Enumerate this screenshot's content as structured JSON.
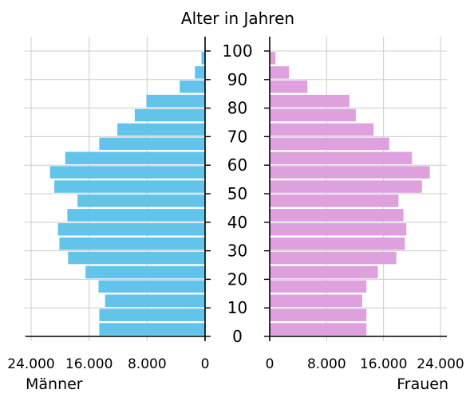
{
  "chart_data": {
    "type": "bar",
    "orientation": "horizontal",
    "title": "Alter in Jahren",
    "age_groups": [
      "0-4",
      "5-9",
      "10-14",
      "15-19",
      "20-24",
      "25-29",
      "30-34",
      "35-39",
      "40-44",
      "45-49",
      "50-54",
      "55-59",
      "60-64",
      "65-69",
      "70-74",
      "75-79",
      "80-84",
      "85-89",
      "90-94",
      "95-99"
    ],
    "age_axis_ticks": [
      "0",
      "10",
      "20",
      "30",
      "40",
      "50",
      "60",
      "70",
      "80",
      "90",
      "100"
    ],
    "series": [
      {
        "name": "Männer",
        "color": "#62c4ea",
        "values": [
          14600,
          14600,
          13800,
          14700,
          16500,
          18900,
          20100,
          20300,
          19000,
          17600,
          20800,
          21400,
          19300,
          14600,
          12100,
          9700,
          8100,
          3500,
          1400,
          500
        ]
      },
      {
        "name": "Frauen",
        "color": "#dea1de",
        "values": [
          13600,
          13600,
          13000,
          13600,
          15200,
          17800,
          19000,
          19200,
          18800,
          18100,
          21400,
          22500,
          20000,
          16800,
          14600,
          12100,
          11200,
          5300,
          2700,
          800
        ]
      }
    ],
    "xlim": [
      0,
      24000
    ],
    "x_ticks_left": [
      "24.000",
      "16.000",
      "8.000",
      "0"
    ],
    "x_ticks_right": [
      "0",
      "8.000",
      "16.000",
      "24.000"
    ],
    "x_tick_values": [
      0,
      8000,
      16000,
      24000
    ],
    "grid": true
  }
}
